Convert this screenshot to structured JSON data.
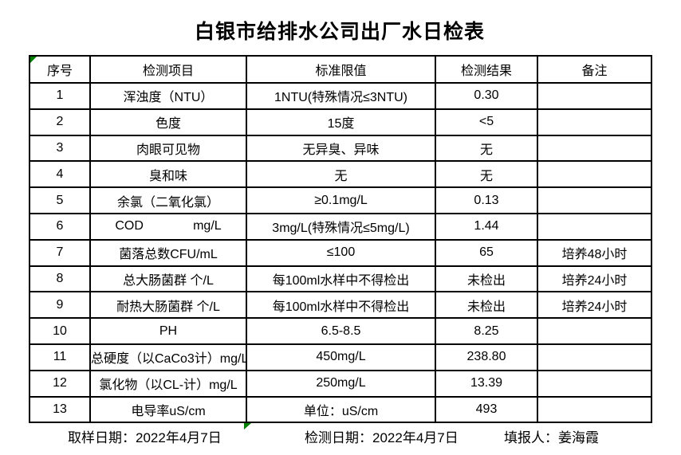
{
  "title": "白银市给排水公司出厂水日检表",
  "table": {
    "headers": [
      "序号",
      "检测项目",
      "标准限值",
      "检测结果",
      "备注"
    ],
    "rows": [
      [
        "1",
        "浑浊度（NTU）",
        "1NTU(特殊情况≤3NTU)",
        "0.30",
        ""
      ],
      [
        "2",
        "色度",
        "15度",
        "<5",
        ""
      ],
      [
        "3",
        "肉眼可见物",
        "无异臭、异味",
        "无",
        ""
      ],
      [
        "4",
        "臭和味",
        "无",
        "无",
        ""
      ],
      [
        "5",
        "余氯（二氧化氯）",
        "≥0.1mg/L",
        "0.13",
        ""
      ],
      [
        "6",
        "COD              mg/L",
        "3mg/L(特殊情况≤5mg/L)",
        "1.44",
        ""
      ],
      [
        "7",
        "菌落总数CFU/mL",
        "≤100",
        "65",
        "培养48小时"
      ],
      [
        "8",
        "总大肠菌群 个/L",
        "每100ml水样中不得检出",
        "未检出",
        "培养24小时"
      ],
      [
        "9",
        "耐热大肠菌群 个/L",
        "每100ml水样中不得检出",
        "未检出",
        "培养24小时"
      ],
      [
        "10",
        "PH",
        "6.5-8.5",
        "8.25",
        ""
      ],
      [
        "11",
        "总硬度（以CaCo3计）mg/L",
        "450mg/L",
        "238.80",
        ""
      ],
      [
        "12",
        "氯化物（以CL-计）mg/L",
        "250mg/L",
        "13.39",
        ""
      ],
      [
        "13",
        "电导率uS/cm",
        "单位：uS/cm",
        "493",
        ""
      ]
    ]
  },
  "footer": {
    "sample_date": "取样日期：2022年4月7日",
    "test_date": "检测日期：2022年4月7日",
    "reporter": "填报人：姜海霞"
  },
  "colors": {
    "flag_green": "#008000",
    "border": "#000000",
    "background": "#ffffff"
  }
}
